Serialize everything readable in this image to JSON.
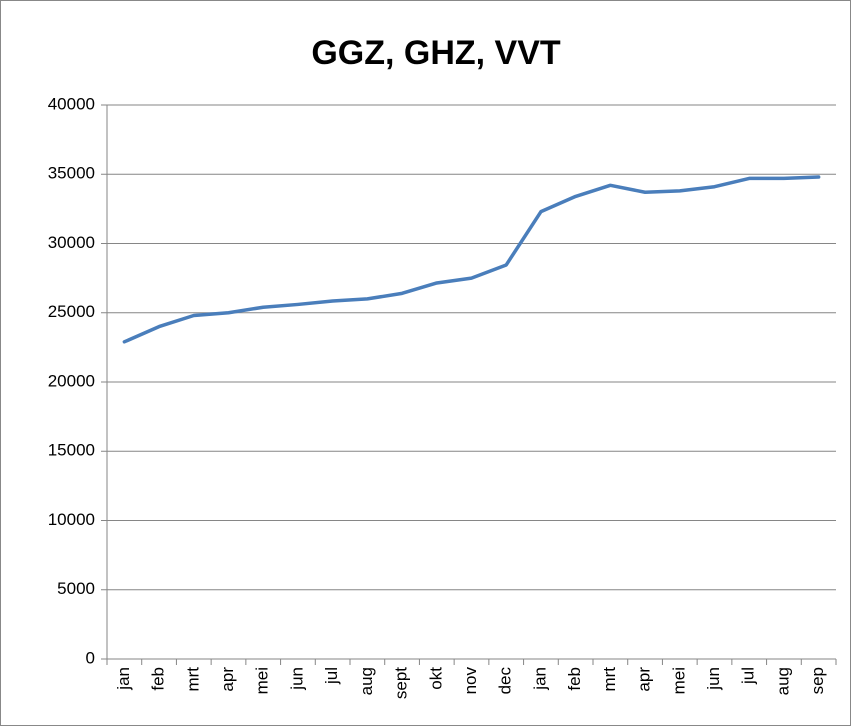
{
  "chart_data": {
    "type": "line",
    "title": "GGZ, GHZ, VVT",
    "categories": [
      "jan",
      "feb",
      "mrt",
      "apr",
      "mei",
      "jun",
      "jul",
      "aug",
      "sept",
      "okt",
      "nov",
      "dec",
      "jan",
      "feb",
      "mrt",
      "apr",
      "mei",
      "jun",
      "jul",
      "aug",
      "sep"
    ],
    "series": [
      {
        "color": "#4a7ebb",
        "values": [
          22900,
          24000,
          24800,
          25000,
          25400,
          25600,
          25850,
          26000,
          26400,
          27150,
          27500,
          28450,
          32300,
          33400,
          34200,
          33700,
          33800,
          34100,
          34700,
          34700,
          34800
        ]
      }
    ],
    "ylim": [
      0,
      40000
    ],
    "yticks": [
      0,
      5000,
      10000,
      15000,
      20000,
      25000,
      30000,
      35000,
      40000
    ],
    "grid": true
  }
}
